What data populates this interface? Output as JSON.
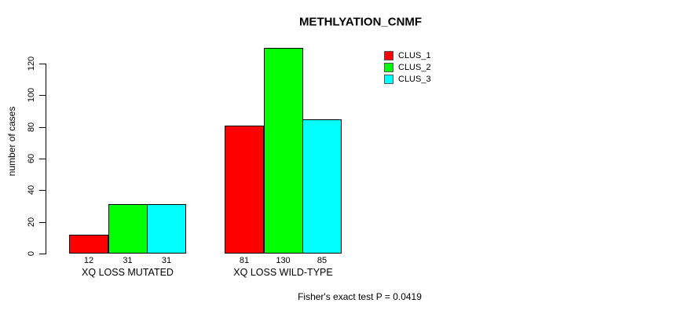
{
  "chart_data": {
    "type": "bar",
    "title": "METHLYATION_CNMF",
    "ylabel": "number of cases",
    "xlabel": "",
    "footnote": "Fisher's exact test P = 0.0419",
    "categories": [
      "XQ LOSS MUTATED",
      "XQ LOSS WILD-TYPE"
    ],
    "series": [
      {
        "name": "CLUS_1",
        "color": "#FF0000",
        "values": [
          12,
          81
        ]
      },
      {
        "name": "CLUS_2",
        "color": "#00FF00",
        "values": [
          31,
          130
        ]
      },
      {
        "name": "CLUS_3",
        "color": "#00FFFF",
        "values": [
          31,
          85
        ]
      }
    ],
    "bar_value_labels": [
      [
        "12",
        "31",
        "31"
      ],
      [
        "81",
        "130",
        "85"
      ]
    ],
    "yticks": [
      0,
      20,
      40,
      60,
      80,
      100,
      120
    ],
    "ylim": [
      0,
      130
    ],
    "grid": false,
    "legend_position": "top-right",
    "colors": {
      "background": "#FFFFFF",
      "text": "#000000",
      "axis": "#000000",
      "bar_border": "#000000"
    }
  }
}
